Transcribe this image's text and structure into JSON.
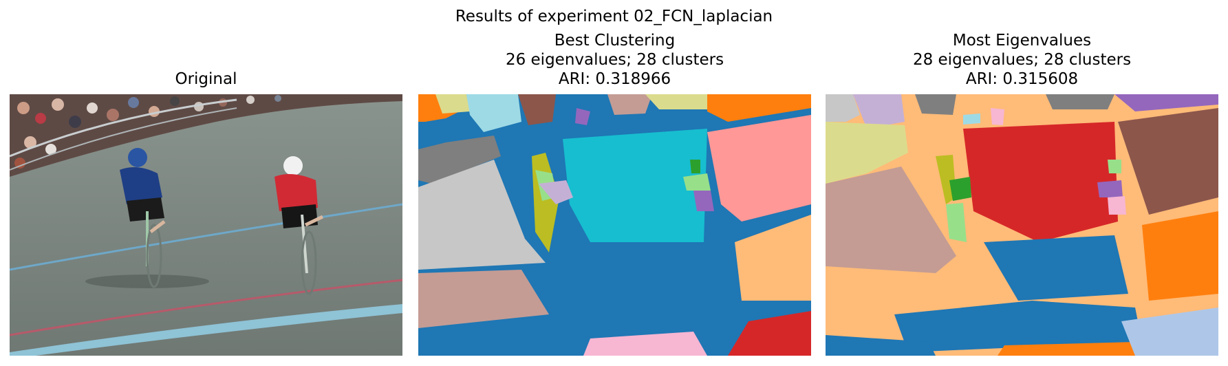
{
  "figure": {
    "suptitle": "Results of experiment 02_FCN_laplacian"
  },
  "panels": [
    {
      "title_lines": [
        "Original"
      ]
    },
    {
      "title_lines": [
        "Best Clustering",
        "26 eigenvalues; 28 clusters",
        "ARI: 0.318966"
      ]
    },
    {
      "title_lines": [
        "Most Eigenvalues",
        "28 eigenvalues; 28 clusters",
        "ARI: 0.315608"
      ]
    }
  ],
  "colors": {
    "seg_blue": "#1f77b4",
    "seg_cyan": "#17becf",
    "seg_pink": "#ff9896",
    "seg_peach": "#ffbb78",
    "seg_red": "#d62728",
    "seg_orange": "#ff7f0e",
    "seg_green": "#2ca02c",
    "seg_purple": "#9467bd",
    "seg_brown": "#8c564b",
    "seg_gray": "#7f7f7f",
    "seg_lightgray": "#c7c7c7",
    "seg_rosybrown": "#c49c94",
    "seg_olive": "#bcbd22",
    "seg_khaki": "#dbdb8d",
    "seg_lavender": "#c5b0d5",
    "seg_lightblue": "#aec7e8",
    "seg_lightgreen": "#98df8a",
    "seg_lightpink": "#f7b6d2",
    "seg_paleturquoise": "#9edae5"
  }
}
